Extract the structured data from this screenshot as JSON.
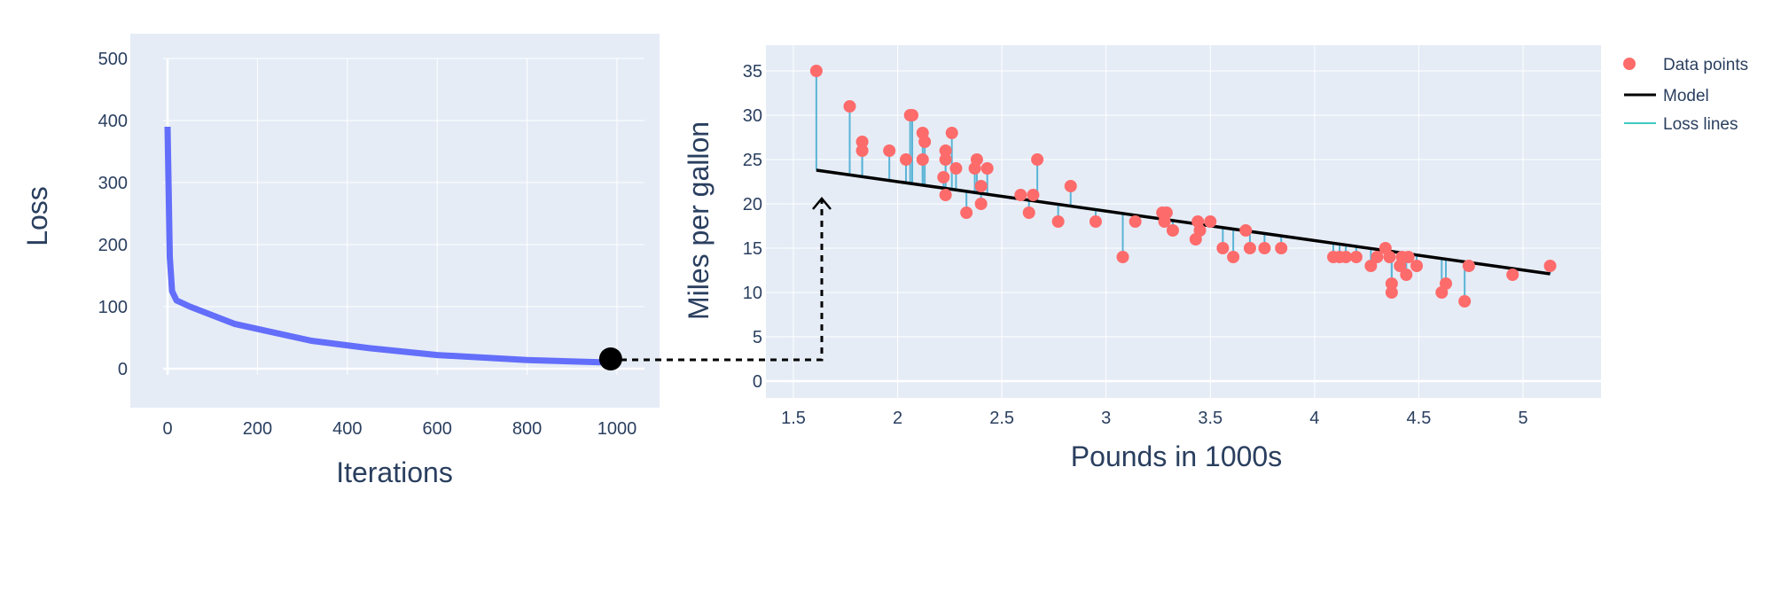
{
  "chart_data": [
    {
      "type": "line",
      "xlabel": "Iterations",
      "ylabel": "Loss",
      "xlim": [
        -80,
        1060
      ],
      "ylim": [
        -65,
        540
      ],
      "xticks": [
        "0",
        "200",
        "400",
        "600",
        "800",
        "1000"
      ],
      "yticks": [
        "0",
        "100",
        "200",
        "300",
        "400",
        "500"
      ],
      "grid": true,
      "color": "#636efa",
      "series": [
        {
          "x": [
            0,
            5,
            10,
            20,
            50,
            150,
            320,
            450,
            600,
            800,
            980
          ],
          "y": [
            390,
            180,
            125,
            110,
            100,
            72,
            45,
            33,
            22,
            14,
            10
          ]
        }
      ],
      "marker": {
        "x": 980,
        "y": 10,
        "color": "#000000"
      }
    },
    {
      "type": "scatter",
      "xlabel": "Pounds in 1000s",
      "ylabel": "Miles per gallon",
      "xlim": [
        1.37,
        5.5
      ],
      "ylim": [
        -2,
        38
      ],
      "xticks": [
        "1.5",
        "2",
        "2.5",
        "3",
        "3.5",
        "4",
        "4.5",
        "5"
      ],
      "yticks": [
        "0",
        "5",
        "10",
        "15",
        "20",
        "25",
        "30",
        "35"
      ],
      "grid": true,
      "legend_position": "right",
      "legend": [
        "Data points",
        "Model",
        "Loss lines"
      ],
      "colors": {
        "points": "#fe6b6b",
        "model": "#000000",
        "loss_lines": "#5ab4d6",
        "loss_legend": "#40c9c0"
      },
      "model": {
        "x": [
          1.61,
          5.13
        ],
        "y": [
          23.8,
          12.1
        ]
      },
      "points": {
        "x": [
          1.61,
          1.77,
          1.83,
          1.83,
          1.96,
          2.04,
          2.06,
          2.07,
          2.12,
          2.13,
          2.12,
          2.23,
          2.23,
          2.22,
          2.23,
          2.26,
          2.28,
          2.33,
          2.37,
          2.38,
          2.4,
          2.4,
          2.43,
          2.59,
          2.63,
          2.65,
          2.67,
          2.77,
          2.83,
          2.95,
          3.08,
          3.14,
          3.27,
          3.29,
          3.28,
          3.32,
          3.43,
          3.44,
          3.45,
          3.5,
          3.56,
          3.61,
          3.67,
          3.69,
          3.76,
          3.84,
          4.09,
          4.12,
          4.15,
          4.2,
          4.27,
          4.3,
          4.34,
          4.36,
          4.37,
          4.37,
          4.41,
          4.42,
          4.44,
          4.45,
          4.49,
          4.61,
          4.63,
          4.72,
          4.74,
          4.95,
          5.13
        ],
        "y": [
          35,
          31,
          27,
          26,
          26,
          25,
          30,
          30,
          28,
          27,
          25,
          26,
          25,
          23,
          21,
          28,
          24,
          19,
          24,
          25,
          22,
          20,
          24,
          21,
          19,
          21,
          25,
          18,
          22,
          18,
          14,
          18,
          19,
          19,
          18,
          17,
          16,
          18,
          17,
          18,
          15,
          14,
          17,
          15,
          15,
          15,
          14,
          14,
          14,
          14,
          13,
          14,
          15,
          14,
          11,
          10,
          13,
          14,
          12,
          14,
          13,
          10,
          11,
          9,
          13,
          12,
          13
        ]
      }
    }
  ]
}
